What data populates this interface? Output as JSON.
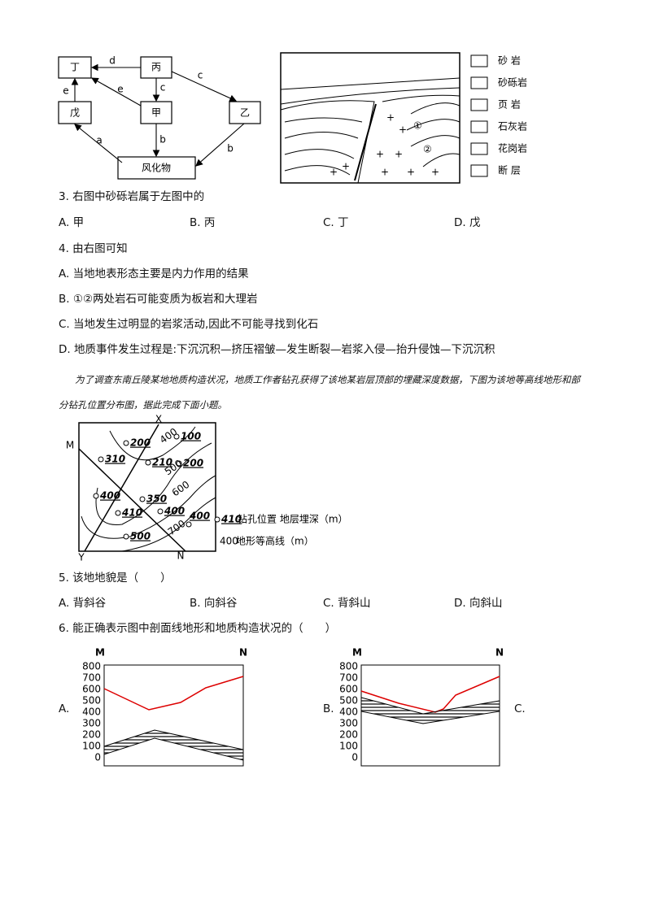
{
  "diagram_cycle": {
    "nodes": [
      "丁",
      "丙",
      "戊",
      "甲",
      "乙",
      "风化物"
    ],
    "edge_labels": [
      "d",
      "c",
      "c",
      "e",
      "e",
      "a",
      "b",
      "b"
    ]
  },
  "diagram_section": {
    "markers": [
      "①",
      "②"
    ],
    "legend": [
      "砂 岩",
      "砂砾岩",
      "页 岩",
      "石灰岩",
      "花岗岩",
      "断 层"
    ]
  },
  "questions": [
    {
      "stem": "3. 右图中砂砾岩属于左图中的",
      "options": [
        "A. 甲",
        "B. 丙",
        "C. 丁",
        "D. 戊"
      ]
    },
    {
      "stem": "4. 由右图可知",
      "options": [
        "A. 当地地表形态主要是内力作用的结果",
        "B. ①②两处岩石可能变质为板岩和大理岩",
        "C. 当地发生过明显的岩浆活动,因此不可能寻找到化石",
        "D. 地质事件发生过程是:下沉沉积—挤压褶皱—发生断裂—岩浆入侵—抬升侵蚀—下沉沉积"
      ]
    },
    {
      "stem": "5. 该地地貌是（　　）",
      "options": [
        "A. 背斜谷",
        "B. 向斜谷",
        "C. 背斜山",
        "D. 向斜山"
      ]
    },
    {
      "stem": "6. 能正确表示图中剖面线地形和地质构造状况的（　　）",
      "options": [
        "A.",
        "B.",
        "C."
      ]
    }
  ],
  "passage": "为了调查东南丘陵某地地质构造状况，地质工作者钻孔获得了该地某岩层顶部的埋藏深度数据，下图为该地等高线地形和部分钻孔位置分布图，据此完成下面小题。",
  "map": {
    "axis_labels": [
      "X",
      "M",
      "Y",
      "N"
    ],
    "wells": [
      310,
      200,
      100,
      210,
      200,
      400,
      350,
      410,
      400,
      500,
      400
    ],
    "contours": [
      400,
      500,
      600,
      700
    ],
    "legend": {
      "well_sample": 410,
      "well_text": "钻孔位置  地层埋深（m）",
      "contour_sample": 400,
      "contour_text": "地形等高线（m）"
    }
  },
  "profiles": [
    {
      "left": "M",
      "right": "N",
      "yticks": [
        800,
        700,
        600,
        500,
        400,
        300,
        200,
        100,
        0
      ]
    },
    {
      "left": "M",
      "right": "N",
      "yticks": [
        800,
        700,
        600,
        500,
        400,
        300,
        200,
        100,
        0
      ]
    }
  ]
}
